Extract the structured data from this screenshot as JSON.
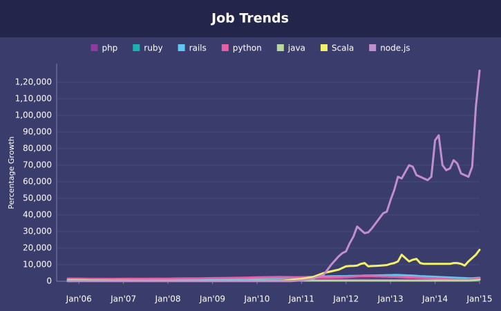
{
  "chart_data": {
    "type": "line",
    "title": "Job Trends",
    "ylabel": "Percentage Growth",
    "x": [
      "2005-10",
      "2006-01",
      "2006-04",
      "2006-07",
      "2006-10",
      "2007-01",
      "2007-04",
      "2007-07",
      "2007-10",
      "2008-01",
      "2008-04",
      "2008-07",
      "2008-10",
      "2009-01",
      "2009-04",
      "2009-07",
      "2009-10",
      "2010-01",
      "2010-04",
      "2010-07",
      "2010-10",
      "2011-01",
      "2011-04",
      "2011-07",
      "2011-08",
      "2011-09",
      "2011-10",
      "2011-11",
      "2011-12",
      "2012-01",
      "2012-02",
      "2012-03",
      "2012-04",
      "2012-05",
      "2012-06",
      "2012-07",
      "2012-08",
      "2012-09",
      "2012-10",
      "2012-11",
      "2012-12",
      "2013-01",
      "2013-02",
      "2013-03",
      "2013-04",
      "2013-05",
      "2013-06",
      "2013-07",
      "2013-08",
      "2013-09",
      "2013-10",
      "2013-11",
      "2013-12",
      "2014-01",
      "2014-02",
      "2014-03",
      "2014-04",
      "2014-05",
      "2014-06",
      "2014-07",
      "2014-08",
      "2014-09",
      "2014-10",
      "2014-11",
      "2014-12",
      "2015-01"
    ],
    "xlim": [
      "2005-07",
      "2015-01"
    ],
    "xticks": [
      {
        "value": "2006-01",
        "label": "Jan'06"
      },
      {
        "value": "2007-01",
        "label": "Jan'07"
      },
      {
        "value": "2008-01",
        "label": "Jan'08"
      },
      {
        "value": "2009-01",
        "label": "Jan'09"
      },
      {
        "value": "2010-01",
        "label": "Jan'10"
      },
      {
        "value": "2011-01",
        "label": "Jan'11"
      },
      {
        "value": "2012-01",
        "label": "Jan'12"
      },
      {
        "value": "2013-01",
        "label": "Jan'13"
      },
      {
        "value": "2014-01",
        "label": "Jan'14"
      },
      {
        "value": "2015-01",
        "label": "Jan'15"
      }
    ],
    "ylim": [
      0,
      130000
    ],
    "yticks": [
      0,
      {
        "value": 10000,
        "label": "10,000"
      },
      {
        "value": 20000,
        "label": "20,000"
      },
      {
        "value": 30000,
        "label": "30,000"
      },
      {
        "value": 40000,
        "label": "40,000"
      },
      {
        "value": 50000,
        "label": "50,000"
      },
      {
        "value": 60000,
        "label": "60,000"
      },
      {
        "value": 70000,
        "label": "70,000"
      },
      {
        "value": 80000,
        "label": "80,000"
      },
      {
        "value": 90000,
        "label": "90,000"
      },
      {
        "value": 100000,
        "label": "1,00,000"
      },
      {
        "value": 110000,
        "label": "1,10,000"
      },
      {
        "value": 120000,
        "label": "1,20,000"
      }
    ],
    "grid": true,
    "series": [
      {
        "name": "php",
        "color": "#8e3a9e",
        "values": [
          1800,
          1700,
          1600,
          1600,
          1500,
          1500,
          1500,
          1500,
          1500,
          1400,
          1400,
          1300,
          1300,
          1200,
          1200,
          1200,
          1200,
          1300,
          1300,
          1300,
          1300,
          1300,
          1300,
          1300,
          1300,
          1300,
          1300,
          1300,
          1300,
          1300,
          1300,
          1200,
          1200,
          1200,
          1200,
          1200,
          1100,
          1100,
          1100,
          1100,
          1100,
          1100,
          1000,
          1000,
          1000,
          1000,
          1000,
          900,
          900,
          900,
          900,
          900,
          900,
          900,
          900,
          800,
          800,
          800,
          800,
          800,
          800,
          800,
          900,
          1000,
          1200,
          1500
        ]
      },
      {
        "name": "ruby",
        "color": "#1ab3b3",
        "values": [
          200,
          300,
          400,
          500,
          600,
          700,
          800,
          900,
          1000,
          1100,
          1200,
          1300,
          1300,
          1300,
          1400,
          1400,
          1500,
          1600,
          1700,
          1800,
          2000,
          2200,
          2400,
          2600,
          2700,
          2800,
          2800,
          2900,
          2900,
          3000,
          3000,
          3100,
          3100,
          3200,
          3200,
          3200,
          3300,
          3300,
          3300,
          3400,
          3400,
          3500,
          3500,
          3400,
          3300,
          3200,
          3000,
          2900,
          2800,
          2700,
          2600,
          2500,
          2400,
          2300,
          2200,
          2100,
          2000,
          1900,
          1800,
          1700,
          1600,
          1500,
          1500,
          1600,
          1800,
          2000
        ]
      },
      {
        "name": "rails",
        "color": "#5ec8f0",
        "values": [
          100,
          200,
          300,
          400,
          500,
          600,
          700,
          800,
          900,
          1000,
          1100,
          1200,
          1300,
          1400,
          1500,
          1600,
          1700,
          1800,
          1900,
          2000,
          2200,
          2400,
          2600,
          2800,
          2900,
          3000,
          3000,
          3100,
          3100,
          3100,
          3200,
          3200,
          3300,
          3300,
          3400,
          3400,
          3500,
          3500,
          3600,
          3600,
          3700,
          3700,
          3800,
          3800,
          3700,
          3600,
          3500,
          3400,
          3300,
          3100,
          3000,
          2900,
          2800,
          2700,
          2600,
          2500,
          2400,
          2300,
          2200,
          2100,
          2000,
          1900,
          1800,
          1800,
          1900,
          2100
        ]
      },
      {
        "name": "python",
        "color": "#e85fa8",
        "values": [
          1500,
          1500,
          1400,
          1400,
          1400,
          1500,
          1500,
          1500,
          1600,
          1600,
          1700,
          1700,
          1800,
          1900,
          2000,
          2100,
          2200,
          2400,
          2500,
          2600,
          2500,
          2400,
          2300,
          2300,
          2300,
          2300,
          2400,
          2400,
          2500,
          2600,
          2700,
          2800,
          2900,
          3000,
          3000,
          3000,
          3000,
          2900,
          2900,
          2800,
          2800,
          2700,
          2700,
          2600,
          2500,
          2400,
          2300,
          2300,
          2200,
          2100,
          2000,
          1900,
          1800,
          1700,
          1600,
          1500,
          1400,
          1300,
          1200,
          1100,
          1000,
          1000,
          1100,
          1200,
          1400,
          1600
        ]
      },
      {
        "name": "java",
        "color": "#b8d8a0",
        "values": [
          800,
          700,
          600,
          500,
          400,
          400,
          300,
          300,
          300,
          300,
          300,
          300,
          300,
          300,
          300,
          300,
          300,
          400,
          400,
          400,
          400,
          400,
          400,
          400,
          400,
          400,
          400,
          400,
          400,
          400,
          400,
          400,
          400,
          400,
          400,
          400,
          400,
          400,
          400,
          400,
          400,
          400,
          400,
          400,
          400,
          400,
          400,
          400,
          400,
          400,
          400,
          400,
          400,
          400,
          400,
          400,
          400,
          400,
          400,
          400,
          400,
          400,
          400,
          500,
          700,
          900
        ]
      },
      {
        "name": "Scala",
        "color": "#f5f06a",
        "values": [
          200,
          200,
          200,
          200,
          200,
          200,
          200,
          200,
          200,
          200,
          200,
          200,
          200,
          200,
          200,
          200,
          200,
          200,
          200,
          200,
          800,
          1500,
          2500,
          5000,
          5500,
          6000,
          6500,
          7000,
          8000,
          9000,
          9200,
          9300,
          9500,
          10500,
          11000,
          9000,
          9200,
          9300,
          9400,
          9600,
          9800,
          10500,
          11000,
          12000,
          16000,
          14000,
          12000,
          13000,
          13500,
          11000,
          10500,
          10500,
          10500,
          10500,
          10500,
          10500,
          10500,
          10500,
          11000,
          11000,
          10500,
          9500,
          12000,
          14000,
          16000,
          19000
        ]
      },
      {
        "name": "node.js",
        "color": "#c08fcc",
        "values": [
          100,
          100,
          100,
          100,
          100,
          100,
          100,
          100,
          100,
          100,
          100,
          100,
          100,
          100,
          100,
          100,
          100,
          100,
          100,
          100,
          100,
          500,
          1500,
          4000,
          7000,
          10000,
          12500,
          15000,
          17000,
          18000,
          23000,
          27000,
          33000,
          31000,
          29000,
          29500,
          32000,
          35000,
          38000,
          41000,
          42000,
          49000,
          55000,
          63000,
          62000,
          66000,
          70000,
          69000,
          64000,
          63000,
          62000,
          61000,
          63000,
          85000,
          88000,
          70000,
          67000,
          68000,
          73000,
          71000,
          65000,
          64000,
          63000,
          69000,
          105000,
          127000
        ]
      }
    ]
  }
}
